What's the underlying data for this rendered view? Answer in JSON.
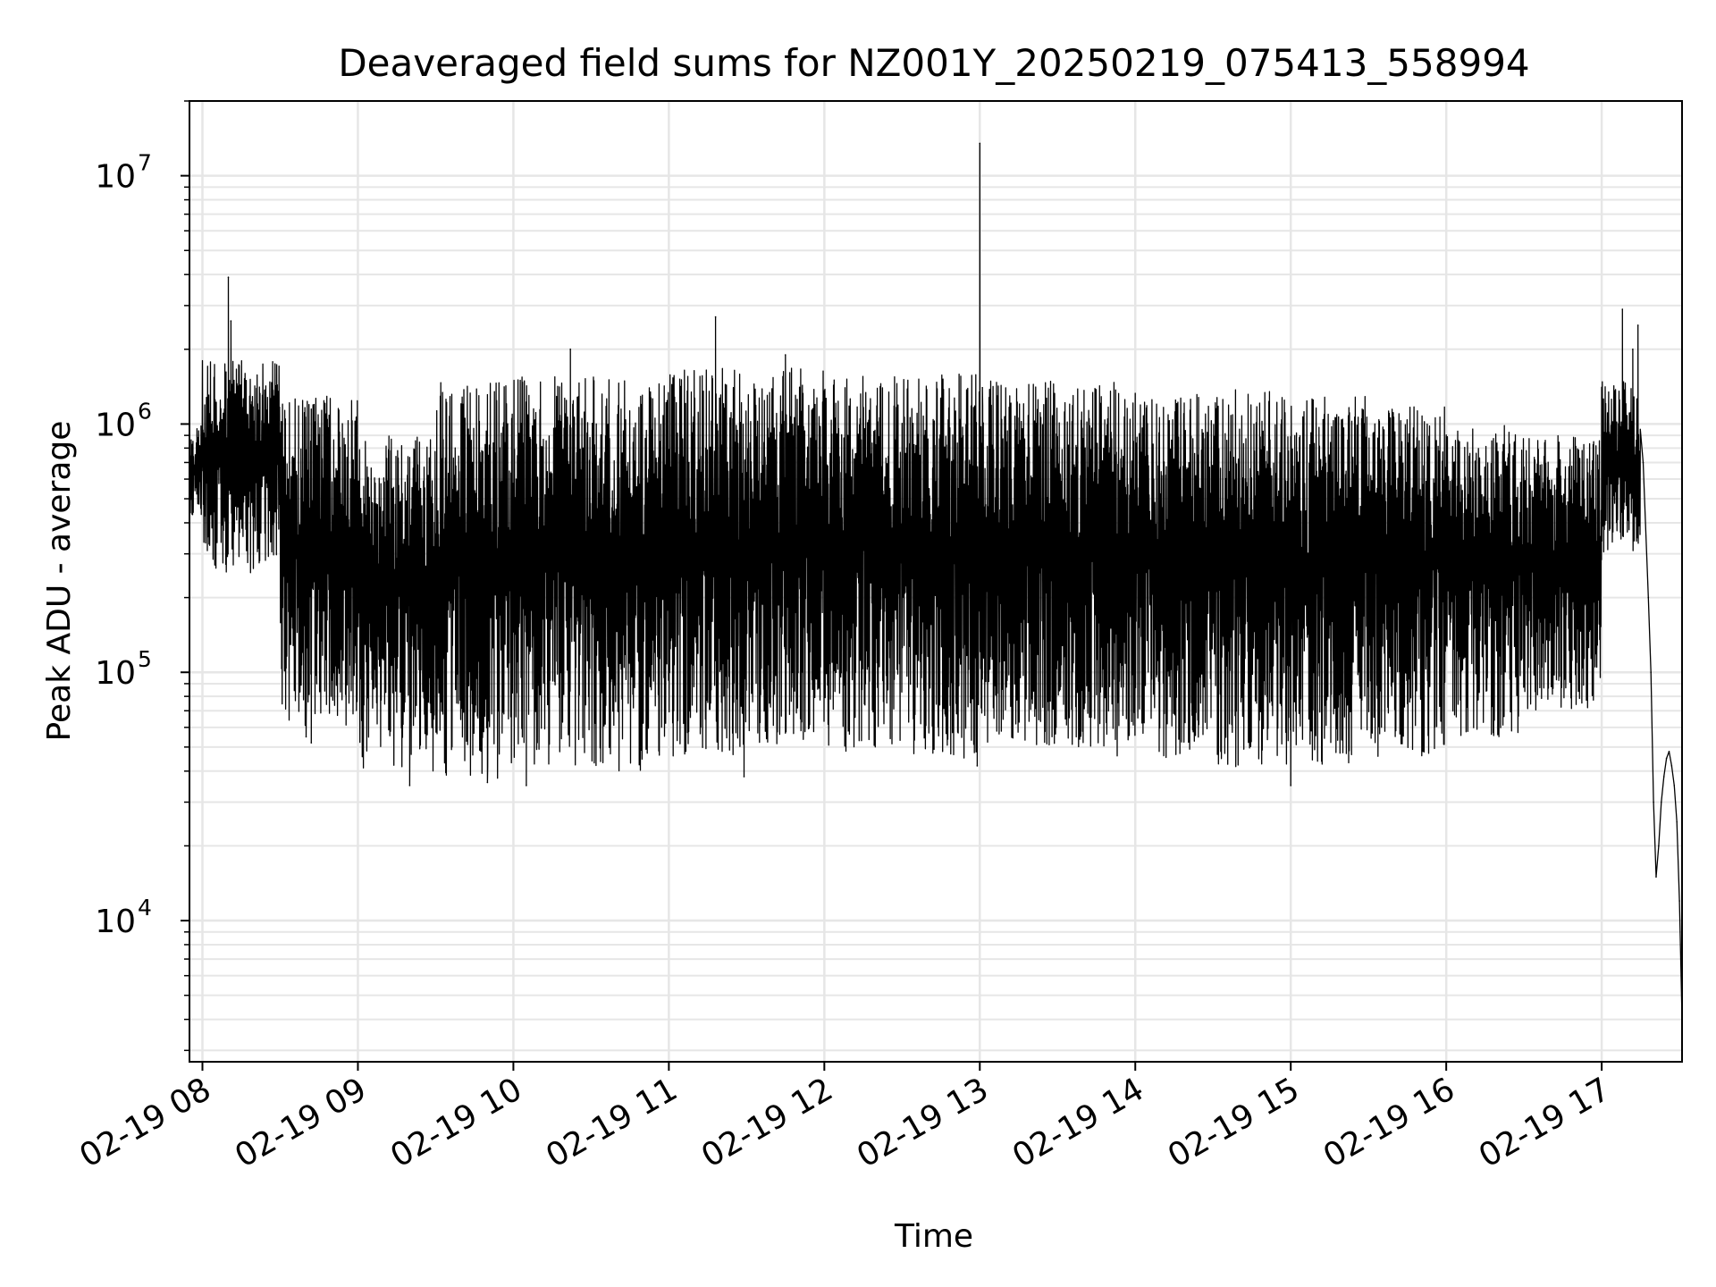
{
  "chart_data": {
    "type": "line",
    "title": "Deaveraged field sums for NZ001Y_20250219_075413_558994",
    "xlabel": "Time",
    "ylabel": "Peak ADU - average",
    "yscale": "log",
    "ylim": [
      2700,
      20000000
    ],
    "xlim": [
      "2025-02-19 07:55",
      "2025-02-19 17:31"
    ],
    "grid": true,
    "line_color": "#000000",
    "grid_color": "#e6e6e6",
    "x_ticks": [
      {
        "value": "2025-02-19 08:00",
        "label": "02-19 08"
      },
      {
        "value": "2025-02-19 09:00",
        "label": "02-19 09"
      },
      {
        "value": "2025-02-19 10:00",
        "label": "02-19 10"
      },
      {
        "value": "2025-02-19 11:00",
        "label": "02-19 11"
      },
      {
        "value": "2025-02-19 12:00",
        "label": "02-19 12"
      },
      {
        "value": "2025-02-19 13:00",
        "label": "02-19 13"
      },
      {
        "value": "2025-02-19 14:00",
        "label": "02-19 14"
      },
      {
        "value": "2025-02-19 15:00",
        "label": "02-19 15"
      },
      {
        "value": "2025-02-19 16:00",
        "label": "02-19 16"
      },
      {
        "value": "2025-02-19 17:00",
        "label": "02-19 17"
      }
    ],
    "y_ticks": [
      {
        "value": 10000,
        "base": "10",
        "exp": "4"
      },
      {
        "value": 100000,
        "base": "10",
        "exp": "5"
      },
      {
        "value": 1000000,
        "base": "10",
        "exp": "6"
      },
      {
        "value": 10000000,
        "base": "10",
        "exp": "7"
      }
    ],
    "series": [
      {
        "segments": [
          {
            "from": "2025-02-19 07:55",
            "to": "2025-02-19 08:00",
            "low": 400000,
            "high": 1000000
          },
          {
            "from": "2025-02-19 08:00",
            "to": "2025-02-19 08:30",
            "low": 250000,
            "high": 1800000
          },
          {
            "from": "2025-02-19 08:30",
            "to": "2025-02-19 09:00",
            "low": 60000,
            "high": 1300000
          },
          {
            "from": "2025-02-19 09:00",
            "to": "2025-02-19 09:30",
            "low": 40000,
            "high": 900000
          },
          {
            "from": "2025-02-19 09:30",
            "to": "2025-02-19 10:00",
            "low": 37000,
            "high": 1500000
          },
          {
            "from": "2025-02-19 10:00",
            "to": "2025-02-19 10:30",
            "low": 42000,
            "high": 1550000
          },
          {
            "from": "2025-02-19 10:30",
            "to": "2025-02-19 11:00",
            "low": 40000,
            "high": 1600000
          },
          {
            "from": "2025-02-19 11:00",
            "to": "2025-02-19 11:30",
            "low": 45000,
            "high": 1700000
          },
          {
            "from": "2025-02-19 11:30",
            "to": "2025-02-19 12:00",
            "low": 50000,
            "high": 1700000
          },
          {
            "from": "2025-02-19 12:00",
            "to": "2025-02-19 12:30",
            "low": 48000,
            "high": 1600000
          },
          {
            "from": "2025-02-19 12:30",
            "to": "2025-02-19 13:00",
            "low": 45000,
            "high": 1600000
          },
          {
            "from": "2025-02-19 13:00",
            "to": "2025-02-19 13:30",
            "low": 50000,
            "high": 1500000
          },
          {
            "from": "2025-02-19 13:30",
            "to": "2025-02-19 14:00",
            "low": 45000,
            "high": 1500000
          },
          {
            "from": "2025-02-19 14:00",
            "to": "2025-02-19 14:30",
            "low": 45000,
            "high": 1400000
          },
          {
            "from": "2025-02-19 14:30",
            "to": "2025-02-19 15:00",
            "low": 40000,
            "high": 1400000
          },
          {
            "from": "2025-02-19 15:00",
            "to": "2025-02-19 15:30",
            "low": 42000,
            "high": 1300000
          },
          {
            "from": "2025-02-19 15:30",
            "to": "2025-02-19 16:00",
            "low": 45000,
            "high": 1200000
          },
          {
            "from": "2025-02-19 16:00",
            "to": "2025-02-19 16:30",
            "low": 55000,
            "high": 1000000
          },
          {
            "from": "2025-02-19 16:30",
            "to": "2025-02-19 17:00",
            "low": 70000,
            "high": 900000
          },
          {
            "from": "2025-02-19 17:00",
            "to": "2025-02-19 17:15",
            "low": 300000,
            "high": 1500000
          }
        ],
        "points": [
          [
            "2025-02-19 08:10",
            3900000
          ],
          [
            "2025-02-19 08:11",
            2600000
          ],
          [
            "2025-02-19 08:35",
            300000
          ],
          [
            "2025-02-19 08:40",
            55000
          ],
          [
            "2025-02-19 08:42",
            52000
          ],
          [
            "2025-02-19 09:20",
            35000
          ],
          [
            "2025-02-19 09:50",
            36000
          ],
          [
            "2025-02-19 10:05",
            35000
          ],
          [
            "2025-02-19 10:22",
            2000000
          ],
          [
            "2025-02-19 11:18",
            2700000
          ],
          [
            "2025-02-19 11:29",
            38000
          ],
          [
            "2025-02-19 11:45",
            1900000
          ],
          [
            "2025-02-19 12:59",
            42000
          ],
          [
            "2025-02-19 13:00",
            13500000
          ],
          [
            "2025-02-19 13:01",
            1400000
          ],
          [
            "2025-02-19 15:00",
            35000
          ],
          [
            "2025-02-19 17:00",
            400000
          ],
          [
            "2025-02-19 17:05",
            500000
          ],
          [
            "2025-02-19 17:08",
            2900000
          ],
          [
            "2025-02-19 17:12",
            2000000
          ],
          [
            "2025-02-19 17:14",
            2500000
          ],
          [
            "2025-02-19 17:16",
            700000
          ],
          [
            "2025-02-19 17:18",
            200000
          ],
          [
            "2025-02-19 17:19",
            100000
          ],
          [
            "2025-02-19 17:20",
            30000
          ],
          [
            "2025-02-19 17:21",
            15000
          ],
          [
            "2025-02-19 17:22",
            20000
          ],
          [
            "2025-02-19 17:23",
            30000
          ],
          [
            "2025-02-19 17:24",
            38000
          ],
          [
            "2025-02-19 17:25",
            45000
          ],
          [
            "2025-02-19 17:26",
            48000
          ],
          [
            "2025-02-19 17:27",
            42000
          ],
          [
            "2025-02-19 17:28",
            35000
          ],
          [
            "2025-02-19 17:29",
            25000
          ],
          [
            "2025-02-19 17:30",
            12000
          ],
          [
            "2025-02-19 17:31",
            4000
          ]
        ]
      }
    ]
  }
}
